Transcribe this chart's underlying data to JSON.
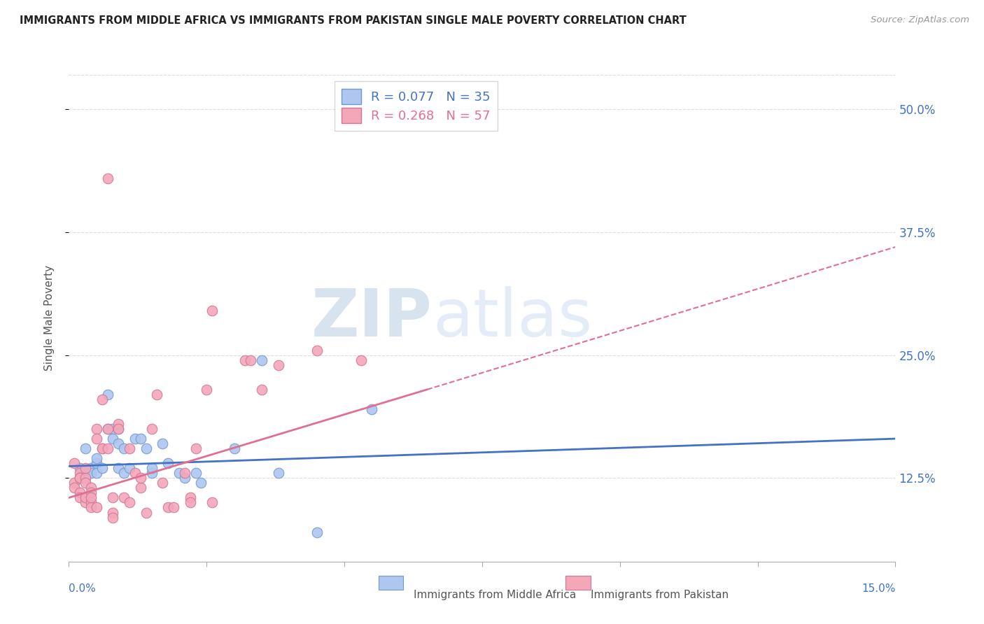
{
  "title": "IMMIGRANTS FROM MIDDLE AFRICA VS IMMIGRANTS FROM PAKISTAN SINGLE MALE POVERTY CORRELATION CHART",
  "source": "Source: ZipAtlas.com",
  "ylabel": "Single Male Poverty",
  "y_ticks": [
    "12.5%",
    "25.0%",
    "37.5%",
    "50.0%"
  ],
  "y_tick_vals": [
    0.125,
    0.25,
    0.375,
    0.5
  ],
  "xlim": [
    0.0,
    0.15
  ],
  "ylim": [
    0.04,
    0.535
  ],
  "legend_label1": "R = 0.077   N = 35",
  "legend_label2": "R = 0.268   N = 57",
  "legend_color1": "#aec6f0",
  "legend_color2": "#f4a7b9",
  "trendline_color1": "#4472c4",
  "trendline_color2": "#e07090",
  "scatter_color1": "#aec6f0",
  "scatter_color2": "#f4a7b9",
  "scatter_edgecolor1": "#7099cc",
  "scatter_edgecolor2": "#cc7799",
  "watermark_zip": "ZIP",
  "watermark_atlas": "atlas",
  "bottom_label1": "Immigrants from Middle Africa",
  "bottom_label2": "Immigrants from Pakistan",
  "blue_points": [
    [
      0.002,
      0.135
    ],
    [
      0.003,
      0.133
    ],
    [
      0.003,
      0.155
    ],
    [
      0.004,
      0.135
    ],
    [
      0.004,
      0.13
    ],
    [
      0.005,
      0.14
    ],
    [
      0.005,
      0.13
    ],
    [
      0.005,
      0.145
    ],
    [
      0.006,
      0.135
    ],
    [
      0.007,
      0.21
    ],
    [
      0.007,
      0.175
    ],
    [
      0.008,
      0.175
    ],
    [
      0.008,
      0.165
    ],
    [
      0.009,
      0.175
    ],
    [
      0.009,
      0.16
    ],
    [
      0.009,
      0.135
    ],
    [
      0.01,
      0.155
    ],
    [
      0.01,
      0.13
    ],
    [
      0.011,
      0.135
    ],
    [
      0.012,
      0.165
    ],
    [
      0.013,
      0.165
    ],
    [
      0.014,
      0.155
    ],
    [
      0.015,
      0.13
    ],
    [
      0.015,
      0.135
    ],
    [
      0.017,
      0.16
    ],
    [
      0.018,
      0.14
    ],
    [
      0.02,
      0.13
    ],
    [
      0.021,
      0.125
    ],
    [
      0.023,
      0.13
    ],
    [
      0.024,
      0.12
    ],
    [
      0.03,
      0.155
    ],
    [
      0.035,
      0.245
    ],
    [
      0.038,
      0.13
    ],
    [
      0.045,
      0.07
    ],
    [
      0.055,
      0.195
    ]
  ],
  "pink_points": [
    [
      0.001,
      0.14
    ],
    [
      0.001,
      0.12
    ],
    [
      0.001,
      0.115
    ],
    [
      0.002,
      0.13
    ],
    [
      0.002,
      0.125
    ],
    [
      0.002,
      0.11
    ],
    [
      0.002,
      0.105
    ],
    [
      0.002,
      0.125
    ],
    [
      0.003,
      0.125
    ],
    [
      0.003,
      0.135
    ],
    [
      0.003,
      0.1
    ],
    [
      0.003,
      0.12
    ],
    [
      0.003,
      0.105
    ],
    [
      0.004,
      0.115
    ],
    [
      0.004,
      0.11
    ],
    [
      0.004,
      0.1
    ],
    [
      0.004,
      0.095
    ],
    [
      0.004,
      0.105
    ],
    [
      0.005,
      0.095
    ],
    [
      0.005,
      0.175
    ],
    [
      0.005,
      0.165
    ],
    [
      0.006,
      0.155
    ],
    [
      0.006,
      0.205
    ],
    [
      0.006,
      0.155
    ],
    [
      0.007,
      0.175
    ],
    [
      0.007,
      0.43
    ],
    [
      0.007,
      0.155
    ],
    [
      0.008,
      0.09
    ],
    [
      0.008,
      0.085
    ],
    [
      0.008,
      0.105
    ],
    [
      0.009,
      0.18
    ],
    [
      0.009,
      0.175
    ],
    [
      0.01,
      0.105
    ],
    [
      0.011,
      0.155
    ],
    [
      0.011,
      0.1
    ],
    [
      0.012,
      0.13
    ],
    [
      0.013,
      0.115
    ],
    [
      0.013,
      0.125
    ],
    [
      0.014,
      0.09
    ],
    [
      0.015,
      0.175
    ],
    [
      0.016,
      0.21
    ],
    [
      0.017,
      0.12
    ],
    [
      0.018,
      0.095
    ],
    [
      0.019,
      0.095
    ],
    [
      0.021,
      0.13
    ],
    [
      0.022,
      0.105
    ],
    [
      0.022,
      0.1
    ],
    [
      0.023,
      0.155
    ],
    [
      0.025,
      0.215
    ],
    [
      0.026,
      0.295
    ],
    [
      0.026,
      0.1
    ],
    [
      0.032,
      0.245
    ],
    [
      0.033,
      0.245
    ],
    [
      0.035,
      0.215
    ],
    [
      0.038,
      0.24
    ],
    [
      0.045,
      0.255
    ],
    [
      0.053,
      0.245
    ]
  ],
  "trendline_blue_x0": 0.0,
  "trendline_blue_y0": 0.137,
  "trendline_blue_x1": 0.15,
  "trendline_blue_y1": 0.165,
  "trendline_pink_x0": 0.0,
  "trendline_pink_y0": 0.105,
  "trendline_pink_x1": 0.065,
  "trendline_pink_y1": 0.215,
  "trendline_pink_dash_x0": 0.065,
  "trendline_pink_dash_y0": 0.215,
  "trendline_pink_dash_x1": 0.15,
  "trendline_pink_dash_y1": 0.36
}
